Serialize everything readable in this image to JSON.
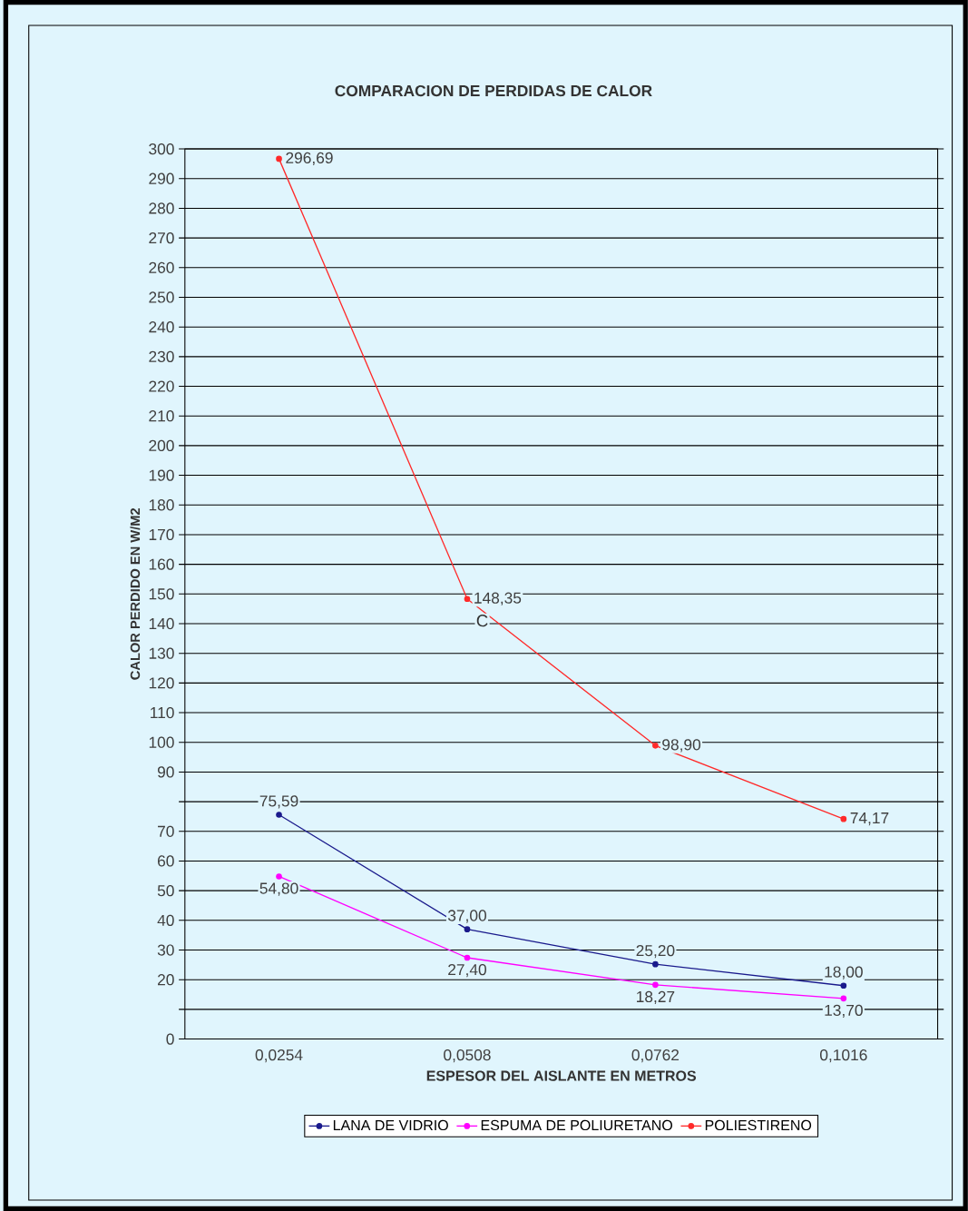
{
  "chart_data": {
    "type": "line",
    "title": "COMPARACION DE PERDIDAS  DE CALOR",
    "xlabel": "ESPESOR DEL AISLANTE EN METROS",
    "ylabel": "CALOR PERDIDO EN  W/M2",
    "categories": [
      "0,0254",
      "0,0508",
      "0,0762",
      "0,1016"
    ],
    "series": [
      {
        "name": "LANA DE VIDRIO",
        "color": "#1a1a8c",
        "values": [
          75.59,
          37.0,
          25.2,
          18.0
        ],
        "value_labels": [
          "75,59",
          "37,00",
          "25,20",
          "18,00"
        ]
      },
      {
        "name": "ESPUMA DE POLIURETANO",
        "color": "#ff00ff",
        "values": [
          54.8,
          27.4,
          18.27,
          13.7
        ],
        "value_labels": [
          "54,80",
          "27,40",
          "18,27",
          "13,70"
        ]
      },
      {
        "name": "POLIESTIRENO",
        "color": "#ff2a2a",
        "values": [
          296.69,
          148.35,
          98.9,
          74.17
        ],
        "value_labels": [
          "296,69",
          "148,35",
          "98,90",
          "74,17"
        ]
      }
    ],
    "ylim": [
      0,
      300
    ],
    "yticks": [
      0,
      {
        "value": 10,
        "label": null
      },
      20,
      30,
      40,
      50,
      60,
      70,
      {
        "value": 80,
        "label": null
      },
      90,
      100,
      110,
      120,
      130,
      140,
      150,
      160,
      170,
      180,
      190,
      200,
      210,
      220,
      230,
      240,
      250,
      260,
      270,
      280,
      290,
      300
    ],
    "annotations": [
      "C"
    ],
    "grid": "y",
    "legend": "bottom",
    "marker": "circle",
    "line_style": "solid"
  }
}
